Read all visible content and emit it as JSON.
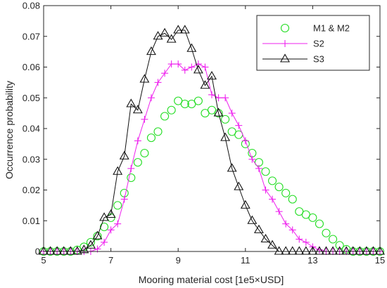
{
  "chart_data": {
    "type": "line",
    "title": "",
    "xlabel": "Mooring material cost [1e5×USD]",
    "ylabel": "Occurrence probability",
    "xlim": [
      5,
      15
    ],
    "ylim": [
      0,
      0.08
    ],
    "xticks": [
      5,
      7,
      9,
      11,
      13,
      15
    ],
    "yticks": [
      0,
      0.01,
      0.02,
      0.03,
      0.04,
      0.05,
      0.06,
      0.07,
      0.08
    ],
    "ytick_labels": [
      "0",
      "0.01",
      "0.02",
      "0.03",
      "0.04",
      "0.05",
      "0.06",
      "0.07",
      "0.08"
    ],
    "grid": false,
    "legend_position": "top-right",
    "series": [
      {
        "name": "M1 & M2",
        "color": "#22dd22",
        "marker": "circle",
        "line": false,
        "x": [
          5.0,
          5.2,
          5.4,
          5.6,
          5.8,
          6.0,
          6.2,
          6.4,
          6.6,
          6.8,
          7.0,
          7.2,
          7.4,
          7.6,
          7.8,
          8.0,
          8.2,
          8.4,
          8.6,
          8.8,
          9.0,
          9.2,
          9.4,
          9.6,
          9.8,
          10.0,
          10.2,
          10.4,
          10.6,
          10.8,
          11.0,
          11.2,
          11.4,
          11.6,
          11.8,
          12.0,
          12.2,
          12.4,
          12.6,
          12.8,
          13.0,
          13.2,
          13.4,
          13.6,
          13.8,
          14.0,
          14.2,
          14.4,
          14.6,
          14.8,
          15.0
        ],
        "y": [
          0,
          0,
          0,
          0,
          0,
          0.0005,
          0.0015,
          0.003,
          0.005,
          0.008,
          0.011,
          0.015,
          0.019,
          0.024,
          0.029,
          0.032,
          0.037,
          0.039,
          0.044,
          0.046,
          0.049,
          0.048,
          0.048,
          0.049,
          0.045,
          0.046,
          0.045,
          0.043,
          0.039,
          0.038,
          0.035,
          0.032,
          0.029,
          0.026,
          0.023,
          0.021,
          0.019,
          0.017,
          0.013,
          0.012,
          0.011,
          0.009,
          0.006,
          0.004,
          0.002,
          0.0007,
          0,
          0,
          0,
          0,
          0
        ]
      },
      {
        "name": "S2",
        "color": "#ee22ee",
        "marker": "plus",
        "line": true,
        "x": [
          5.0,
          5.2,
          5.4,
          5.6,
          5.8,
          6.0,
          6.2,
          6.4,
          6.6,
          6.8,
          7.0,
          7.2,
          7.4,
          7.6,
          7.8,
          8.0,
          8.2,
          8.4,
          8.6,
          8.8,
          9.0,
          9.2,
          9.4,
          9.6,
          9.8,
          10.0,
          10.2,
          10.4,
          10.6,
          10.8,
          11.0,
          11.2,
          11.4,
          11.6,
          11.8,
          12.0,
          12.2,
          12.4,
          12.6,
          12.8,
          13.0,
          13.2,
          13.4,
          13.6,
          13.8,
          14.0,
          14.2,
          14.4,
          14.6,
          14.8,
          15.0
        ],
        "y": [
          0,
          0,
          0,
          0,
          0,
          0,
          0,
          0,
          0.0008,
          0.003,
          0.007,
          0.009,
          0.017,
          0.027,
          0.036,
          0.043,
          0.05,
          0.055,
          0.058,
          0.061,
          0.061,
          0.059,
          0.06,
          0.061,
          0.06,
          0.051,
          0.05,
          0.05,
          0.045,
          0.041,
          0.036,
          0.03,
          0.027,
          0.02,
          0.017,
          0.013,
          0.009,
          0.007,
          0.004,
          0.003,
          0.0015,
          0.0005,
          0,
          0,
          0,
          0,
          0,
          0,
          0,
          0,
          0
        ]
      },
      {
        "name": "S3",
        "color": "#111111",
        "marker": "triangle",
        "line": true,
        "x": [
          5.0,
          5.2,
          5.4,
          5.6,
          5.8,
          6.0,
          6.2,
          6.4,
          6.6,
          6.8,
          7.0,
          7.2,
          7.4,
          7.6,
          7.8,
          8.0,
          8.2,
          8.4,
          8.6,
          8.8,
          9.0,
          9.2,
          9.4,
          9.6,
          9.8,
          10.0,
          10.2,
          10.4,
          10.6,
          10.8,
          11.0,
          11.2,
          11.4,
          11.6,
          11.8,
          12.0,
          12.2,
          12.4,
          12.6,
          12.8,
          13.0,
          13.2,
          13.4,
          13.6,
          13.8,
          14.0,
          14.2,
          14.4,
          14.6,
          14.8,
          15.0
        ],
        "y": [
          0,
          0,
          0,
          0,
          0,
          0,
          0.0005,
          0.002,
          0.005,
          0.011,
          0.012,
          0.026,
          0.031,
          0.048,
          0.046,
          0.056,
          0.065,
          0.07,
          0.071,
          0.069,
          0.072,
          0.072,
          0.066,
          0.059,
          0.054,
          0.057,
          0.045,
          0.037,
          0.027,
          0.021,
          0.015,
          0.01,
          0.007,
          0.004,
          0.002,
          0,
          0,
          0,
          0,
          0,
          0,
          0,
          0,
          0,
          0,
          0,
          0,
          0,
          0,
          0,
          0
        ]
      }
    ]
  }
}
